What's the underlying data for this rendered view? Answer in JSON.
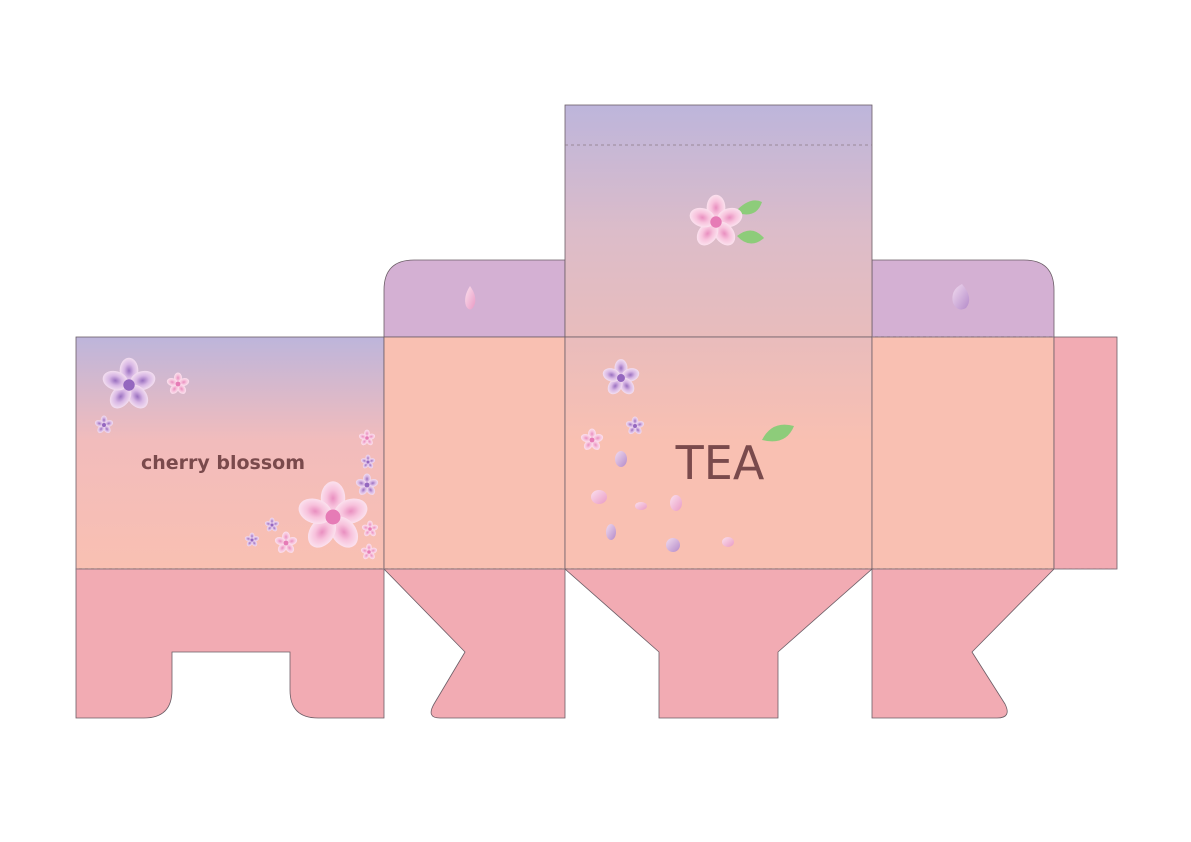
{
  "front_panel": {
    "product_name": "cherry blossom"
  },
  "main_panel": {
    "brand": "TEA"
  },
  "colors": {
    "panel_peach": "#f9c0b2",
    "flap_pink": "#f2abb3",
    "lid_lavender": "#d4b0d3",
    "gradient_top": "#bdb5db",
    "text_brown": "#7a4a4c",
    "leaf_green": "#8dcc7a",
    "blossom_pink": "#f5b5cf",
    "blossom_violet": "#b48ac9"
  },
  "icons": [
    "cherry-blossom-icon",
    "leaf-icon",
    "petal-icon"
  ]
}
